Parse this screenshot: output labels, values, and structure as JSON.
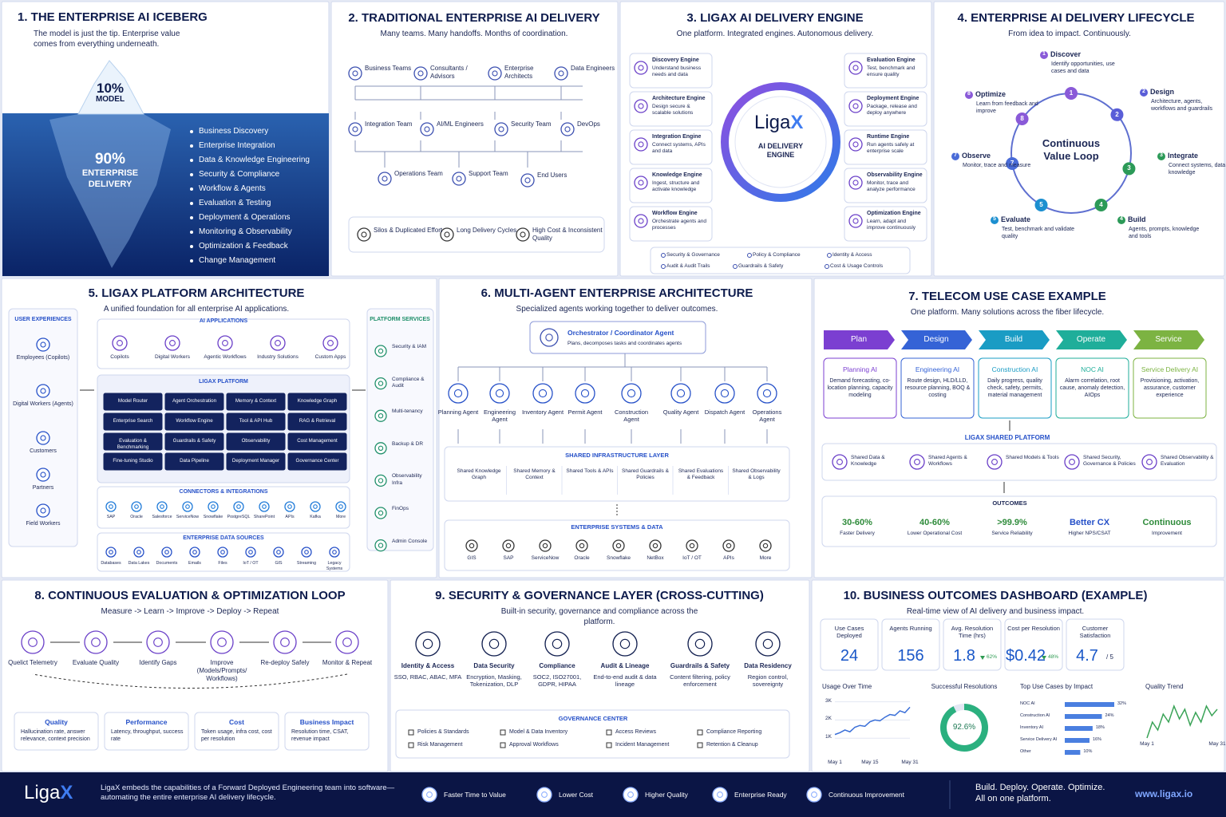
{
  "panels": {
    "p1": {
      "title": "1. THE ENTERPRISE AI ICEBERG",
      "subtitle": "The model is just the tip. Enterprise value comes from everything underneath.",
      "tip_value": "10%",
      "tip_label": "MODEL",
      "base_value": "90%",
      "base_label": "ENTERPRISE DELIVERY",
      "items": [
        "Business Discovery",
        "Enterprise Integration",
        "Data & Knowledge Engineering",
        "Security & Compliance",
        "Workflow & Agents",
        "Evaluation & Testing",
        "Deployment & Operations",
        "Monitoring & Observability",
        "Optimization & Feedback",
        "Change Management"
      ]
    },
    "p2": {
      "title": "2. TRADITIONAL ENTERPRISE AI DELIVERY",
      "subtitle": "Many teams. Many handoffs. Months of coordination.",
      "roles": [
        "Business Teams",
        "Consultants / Advisors",
        "Enterprise Architects",
        "Data Engineers",
        "Integration Team",
        "AI/ML Engineers",
        "Security Team",
        "DevOps",
        "Operations Team",
        "Support Team",
        "End Users"
      ],
      "problems": [
        "Silos & Duplicated Effort",
        "Long Delivery Cycles",
        "High Cost & Inconsistent Quality"
      ]
    },
    "p3": {
      "title": "3. LIGAX AI DELIVERY ENGINE",
      "subtitle": "One platform. Integrated engines. Autonomous delivery.",
      "logo_main": "Liga",
      "logo_accent": "X",
      "center_label": "AI DELIVERY ENGINE",
      "left": [
        {
          "name": "Discovery Engine",
          "desc": "Understand business needs and data"
        },
        {
          "name": "Architecture Engine",
          "desc": "Design secure & scalable solutions"
        },
        {
          "name": "Integration Engine",
          "desc": "Connect systems, APIs and data"
        },
        {
          "name": "Knowledge Engine",
          "desc": "Ingest, structure and activate knowledge"
        },
        {
          "name": "Workflow Engine",
          "desc": "Orchestrate agents and processes"
        }
      ],
      "right": [
        {
          "name": "Evaluation Engine",
          "desc": "Test, benchmark and ensure quality"
        },
        {
          "name": "Deployment Engine",
          "desc": "Package, release and deploy anywhere"
        },
        {
          "name": "Runtime Engine",
          "desc": "Run agents safely at enterprise scale"
        },
        {
          "name": "Observability Engine",
          "desc": "Monitor, trace and analyze performance"
        },
        {
          "name": "Optimization Engine",
          "desc": "Learn, adapt and improve continuously"
        }
      ],
      "controls": [
        "Security & Governance",
        "Policy & Compliance",
        "Identity & Access",
        "Audit & Audit Trails",
        "Guardrails & Safety",
        "Cost & Usage Controls"
      ]
    },
    "p4": {
      "title": "4. ENTERPRISE AI DELIVERY LIFECYCLE",
      "subtitle": "From idea to impact. Continuously.",
      "center": "Continuous Value Loop",
      "steps": [
        {
          "n": 1,
          "name": "Discover",
          "desc": "Identify opportunities, use cases and data"
        },
        {
          "n": 2,
          "name": "Design",
          "desc": "Architecture, agents, workflows and guardrails"
        },
        {
          "n": 3,
          "name": "Integrate",
          "desc": "Connect systems, data and knowledge"
        },
        {
          "n": 4,
          "name": "Build",
          "desc": "Agents, prompts, knowledge and tools"
        },
        {
          "n": 5,
          "name": "Evaluate",
          "desc": "Test, benchmark and validate quality"
        },
        {
          "n": 7,
          "name": "Observe",
          "desc": "Monitor, trace and measure"
        },
        {
          "n": 8,
          "name": "Optimize",
          "desc": "Learn from feedback and improve"
        }
      ]
    },
    "p5": {
      "title": "5. LIGAX PLATFORM ARCHITECTURE",
      "subtitle": "A unified foundation for all enterprise AI applications.",
      "users": {
        "title": "USER EXPERIENCES",
        "items": [
          "Employees (Copilots)",
          "Digital Workers (Agents)",
          "Customers",
          "Partners",
          "Field Workers"
        ]
      },
      "apps": {
        "title": "AI APPLICATIONS",
        "items": [
          "Copilots",
          "Digital Workers",
          "Agentic Workflows",
          "Industry Solutions",
          "Custom Apps"
        ]
      },
      "platform": {
        "title": "LIGAX PLATFORM",
        "items": [
          "Model Router",
          "Agent Orchestration",
          "Memory & Context",
          "Knowledge Graph",
          "Enterprise Search",
          "Workflow Engine",
          "Tool & API Hub",
          "RAG & Retrieval",
          "Evaluation & Benchmarking",
          "Guardrails & Safety",
          "Observability",
          "Cost Management",
          "Fine-tuning Studio",
          "Data Pipeline",
          "Deployment Manager",
          "Governance Center"
        ]
      },
      "connectors": {
        "title": "CONNECTORS & INTEGRATIONS",
        "items": [
          "SAP",
          "Oracle",
          "Salesforce",
          "ServiceNow",
          "Snowflake",
          "PostgreSQL",
          "SharePoint",
          "APIs",
          "Kafka",
          "More"
        ]
      },
      "sources": {
        "title": "ENTERPRISE DATA SOURCES",
        "items": [
          "Databases",
          "Data Lakes",
          "Documents",
          "Emails",
          "Files",
          "IoT / OT",
          "GIS",
          "Streaming",
          "Legacy Systems"
        ]
      },
      "services": {
        "title": "PLATFORM SERVICES",
        "items": [
          "Security & IAM",
          "Compliance & Audit",
          "Multi-tenancy",
          "Backup & DR",
          "Observability Infra",
          "FinOps",
          "Admin Console"
        ]
      }
    },
    "p6": {
      "title": "6. MULTI-AGENT ENTERPRISE ARCHITECTURE",
      "subtitle": "Specialized agents working together to deliver outcomes.",
      "orchestrator": {
        "name": "Orchestrator / Coordinator Agent",
        "desc": "Plans, decomposes tasks and coordinates agents"
      },
      "agents": [
        "Planning Agent",
        "Engineering Agent",
        "Inventory Agent",
        "Permit Agent",
        "Construction Agent",
        "Quality Agent",
        "Dispatch Agent",
        "Operations Agent"
      ],
      "shared": {
        "title": "SHARED INFRASTRUCTURE LAYER",
        "items": [
          "Shared Knowledge Graph",
          "Shared Memory & Context",
          "Shared Tools & APIs",
          "Shared Guardrails & Policies",
          "Shared Evaluations & Feedback",
          "Shared Observability & Logs"
        ]
      },
      "systems": {
        "title": "ENTERPRISE SYSTEMS & DATA",
        "items": [
          "GIS",
          "SAP",
          "ServiceNow",
          "Oracle",
          "Snowflake",
          "NetBox",
          "IoT / OT",
          "APIs",
          "More"
        ]
      }
    },
    "p7": {
      "title": "7. TELECOM USE CASE EXAMPLE",
      "subtitle": "One platform. Many solutions across the fiber lifecycle.",
      "phases": [
        {
          "name": "Plan",
          "ai": "Planning AI",
          "desc": "Demand forecasting, co-location planning, capacity modeling",
          "color": "#7b3fd1"
        },
        {
          "name": "Design",
          "ai": "Engineering AI",
          "desc": "Route design, HLD/LLD, resource planning, BOQ & costing",
          "color": "#3563d6"
        },
        {
          "name": "Build",
          "ai": "Construction AI",
          "desc": "Daily progress, quality check, safety, permits, material management",
          "color": "#1a9cc4"
        },
        {
          "name": "Operate",
          "ai": "NOC AI",
          "desc": "Alarm correlation, root cause, anomaly detection, AIOps",
          "color": "#1fae9a"
        },
        {
          "name": "Service",
          "ai": "Service Delivery AI",
          "desc": "Provisioning, activation, assurance, customer experience",
          "color": "#7cb342"
        }
      ],
      "shared": {
        "title": "LIGAX SHARED PLATFORM",
        "items": [
          "Shared Data & Knowledge",
          "Shared Agents & Workflows",
          "Shared Models & Tools",
          "Shared Security, Governance & Policies",
          "Shared Observability & Evaluation"
        ]
      },
      "outcomes": {
        "title": "OUTCOMES",
        "items": [
          {
            "value": "30-60%",
            "label": "Faster Delivery"
          },
          {
            "value": "40-60%",
            "label": "Lower Operational Cost"
          },
          {
            "value": ">99.9%",
            "label": "Service Reliability"
          },
          {
            "value": "Better CX",
            "label": "Higher NPS/CSAT"
          },
          {
            "value": "Continuous",
            "label": "Improvement"
          }
        ]
      }
    },
    "p8": {
      "title": "8. CONTINUOUS EVALUATION & OPTIMIZATION LOOP",
      "subtitle": "Measure -> Learn -> Improve -> Deploy -> Repeat",
      "steps": [
        "Quelict Telemetry",
        "Evaluate Quality",
        "Identify Gaps",
        "Improve (Models/Prompts/ Workflows)",
        "Re-deploy Safely",
        "Monitor & Repeat"
      ],
      "metrics": [
        {
          "name": "Quality",
          "desc": "Hallucination rate, answer relevance, context precision"
        },
        {
          "name": "Performance",
          "desc": "Latency, throughput, success rate"
        },
        {
          "name": "Cost",
          "desc": "Token usage, infra cost, cost per resolution"
        },
        {
          "name": "Business Impact",
          "desc": "Resolution time, CSAT, revenue impact"
        }
      ]
    },
    "p9": {
      "title": "9. SECURITY & GOVERNANCE LAYER (CROSS-CUTTING)",
      "subtitle": "Built-in security, governance and compliance across the platform.",
      "pillars": [
        {
          "name": "Identity & Access",
          "desc": "SSO, RBAC, ABAC, MFA"
        },
        {
          "name": "Data Security",
          "desc": "Encryption, Masking, Tokenization, DLP"
        },
        {
          "name": "Compliance",
          "desc": "SOC2, ISO27001, GDPR, HIPAA"
        },
        {
          "name": "Audit & Lineage",
          "desc": "End-to-end audit & data lineage"
        },
        {
          "name": "Guardrails & Safety",
          "desc": "Content filtering, policy enforcement"
        },
        {
          "name": "Data Residency",
          "desc": "Region control, sovereignty"
        }
      ],
      "governance": {
        "title": "GOVERNANCE CENTER",
        "items": [
          "Policies & Standards",
          "Model & Data Inventory",
          "Access Reviews",
          "Compliance Reporting",
          "Risk Management",
          "Approval Workflows",
          "Incident Management",
          "Retention & Cleanup"
        ]
      }
    },
    "p10": {
      "title": "10. BUSINESS OUTCOMES DASHBOARD (EXAMPLE)",
      "subtitle": "Real-time view of AI delivery and business impact.",
      "kpis": [
        {
          "label": "Use Cases Deployed",
          "value": 24
        },
        {
          "label": "Agents Running",
          "value": 156
        },
        {
          "label": "Avg. Resolution Time (hrs)",
          "value": 1.8,
          "change": "62%"
        },
        {
          "label": "Cost per Resolution",
          "value": "$0.42",
          "change": "48%"
        },
        {
          "label": "Customer Satisfaction",
          "value": 4.7,
          "suffix": "/ 5"
        }
      ]
    },
    "footer": {
      "logo_main": "Liga",
      "logo_accent": "X",
      "tagline": "LigaX embeds the capabilities of a Forward Deployed Engineering team into software— automating the entire enterprise AI delivery lifecycle.",
      "benefits": [
        "Faster Time to Value",
        "Lower Cost",
        "Higher Quality",
        "Enterprise Ready",
        "Continuous Improvement"
      ],
      "slogan": "Build. Deploy. Operate. Optimize. All on one platform.",
      "url": "www.ligax.io"
    }
  },
  "chart_data": [
    {
      "type": "line",
      "title": "Usage Over Time",
      "categories": [
        "May 1",
        null,
        null,
        null,
        null,
        null,
        null,
        "May 15",
        null,
        null,
        null,
        null,
        null,
        null,
        null,
        "May 31"
      ],
      "series": [
        {
          "name": "Usage",
          "color": "#3a6fd8",
          "values": [
            1200,
            1300,
            1450,
            1350,
            1600,
            1700,
            1650,
            1900,
            2000,
            1950,
            2150,
            2300,
            2250,
            2500,
            2400,
            2700
          ]
        }
      ],
      "ylim": [
        0,
        3200
      ],
      "yticks": [
        {
          "value": 1000,
          "label": "1K"
        },
        {
          "value": 2000,
          "label": "2K"
        },
        {
          "value": 3000,
          "label": "3K"
        }
      ],
      "grid": true
    },
    {
      "type": "pie",
      "title": "Successful Resolutions",
      "values": [
        92.6
      ],
      "value_labels": [
        "92.6%"
      ],
      "color": "#2bb07f"
    },
    {
      "type": "bar",
      "title": "Top Use Cases by Impact",
      "orientation": "horizontal",
      "categories": [
        "NOC AI",
        "Construction AI",
        "Inventory AI",
        "Service Delivery AI",
        "Other"
      ],
      "values": [
        32,
        24,
        18,
        16,
        10
      ],
      "value_labels": [
        "32%",
        "24%",
        "18%",
        "16%",
        "10%"
      ],
      "color": "#4a7fe0"
    },
    {
      "type": "line",
      "title": "Quality Trend",
      "categories": [
        "May 1",
        null,
        null,
        null,
        null,
        null,
        null,
        null,
        null,
        null,
        null,
        null,
        null,
        "May 31"
      ],
      "series": [
        {
          "name": "Quality",
          "color": "#3aa357",
          "values": [
            4.5,
            4.6,
            4.55,
            4.65,
            4.6,
            4.7,
            4.62,
            4.68,
            4.58,
            4.66,
            4.6,
            4.7,
            4.64,
            4.68
          ]
        }
      ]
    }
  ]
}
